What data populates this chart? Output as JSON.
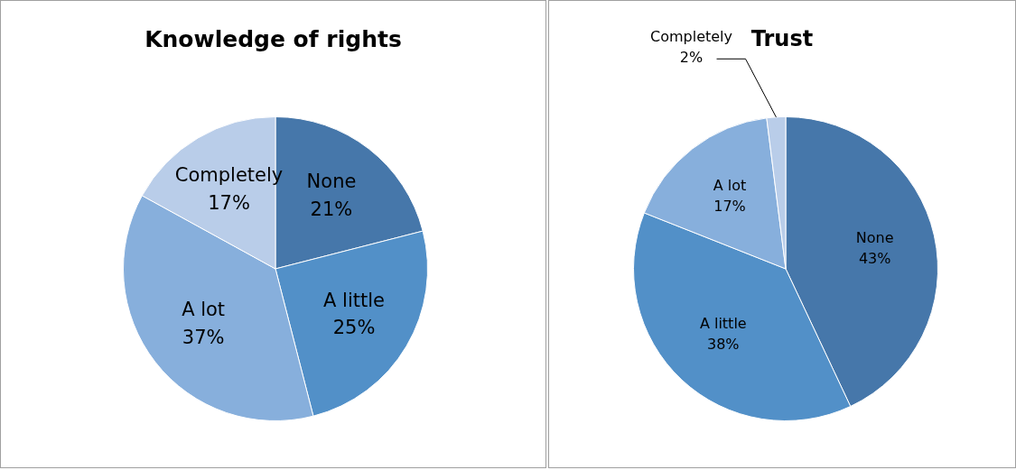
{
  "chart_data": [
    {
      "type": "pie",
      "title": "Knowledge of rights",
      "categories": [
        "None",
        "A little",
        "A lot",
        "Completely"
      ],
      "values": [
        21,
        25,
        37,
        17
      ],
      "value_labels": [
        "21%",
        "25%",
        "37%",
        "17%"
      ],
      "colors": [
        "#4677aa",
        "#5290c8",
        "#87afdc",
        "#b9cde9"
      ],
      "legend": false
    },
    {
      "type": "pie",
      "title": "Trust",
      "categories": [
        "None",
        "A little",
        "A lot",
        "Completely"
      ],
      "values": [
        43,
        38,
        17,
        2
      ],
      "value_labels": [
        "43%",
        "38%",
        "17%",
        "2%"
      ],
      "colors": [
        "#4677aa",
        "#5290c8",
        "#87afdc",
        "#b9cde9"
      ],
      "legend": false
    }
  ]
}
